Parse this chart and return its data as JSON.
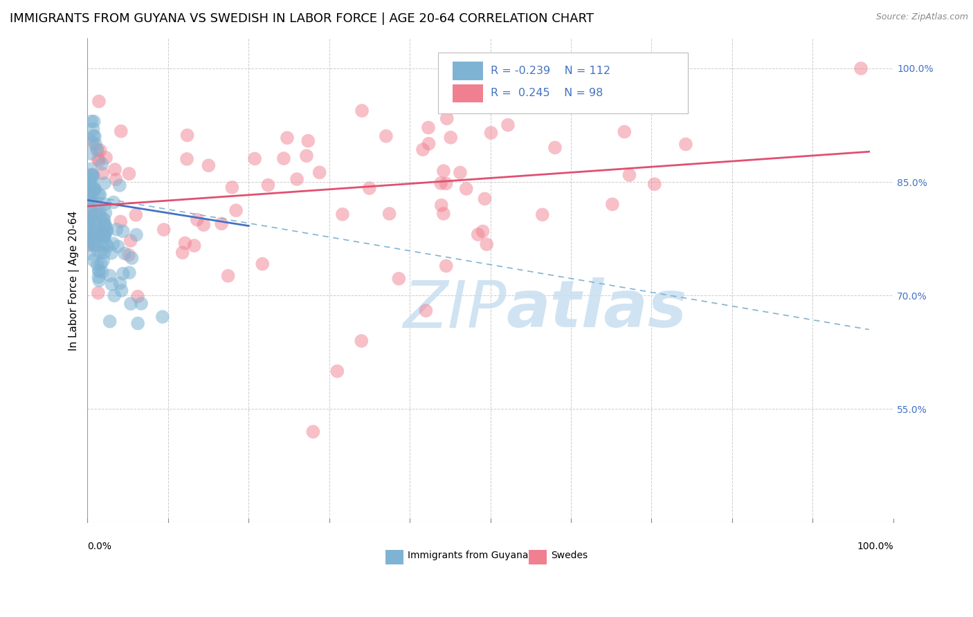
{
  "title": "IMMIGRANTS FROM GUYANA VS SWEDISH IN LABOR FORCE | AGE 20-64 CORRELATION CHART",
  "source": "Source: ZipAtlas.com",
  "ylabel": "In Labor Force | Age 20-64",
  "ytick_labels": [
    "55.0%",
    "70.0%",
    "85.0%",
    "100.0%"
  ],
  "ytick_values": [
    0.55,
    0.7,
    0.85,
    1.0
  ],
  "legend_entries": [
    {
      "label": "Immigrants from Guyana",
      "color": "#a8c4e0",
      "R": -0.239,
      "N": 112
    },
    {
      "label": "Swedes",
      "color": "#f4a0b0",
      "R": 0.245,
      "N": 98
    }
  ],
  "blue_trend": {
    "x_start": 0.0,
    "x_end": 0.2,
    "y_start": 0.826,
    "y_end": 0.792
  },
  "pink_trend": {
    "x_start": 0.0,
    "x_end": 0.97,
    "y_start": 0.818,
    "y_end": 0.89
  },
  "blue_dashed_trend": {
    "x_start": 0.0,
    "x_end": 0.97,
    "y_start": 0.832,
    "y_end": 0.655
  },
  "scatter_color_blue": "#7fb3d3",
  "scatter_color_pink": "#f08090",
  "trend_color_blue": "#4472c4",
  "trend_color_pink": "#e05070",
  "trend_color_blue_dashed": "#7fb3d3",
  "watermark_color": "#c8dff0",
  "background_color": "#ffffff",
  "grid_color": "#cccccc",
  "title_fontsize": 13,
  "axis_label_fontsize": 11,
  "tick_fontsize": 10,
  "source_fontsize": 9,
  "xlim": [
    0.0,
    1.0
  ],
  "ylim": [
    0.4,
    1.04
  ],
  "xtick_positions": [
    0.0,
    0.1,
    0.2,
    0.3,
    0.4,
    0.5,
    0.6,
    0.7,
    0.8,
    0.9,
    1.0
  ]
}
